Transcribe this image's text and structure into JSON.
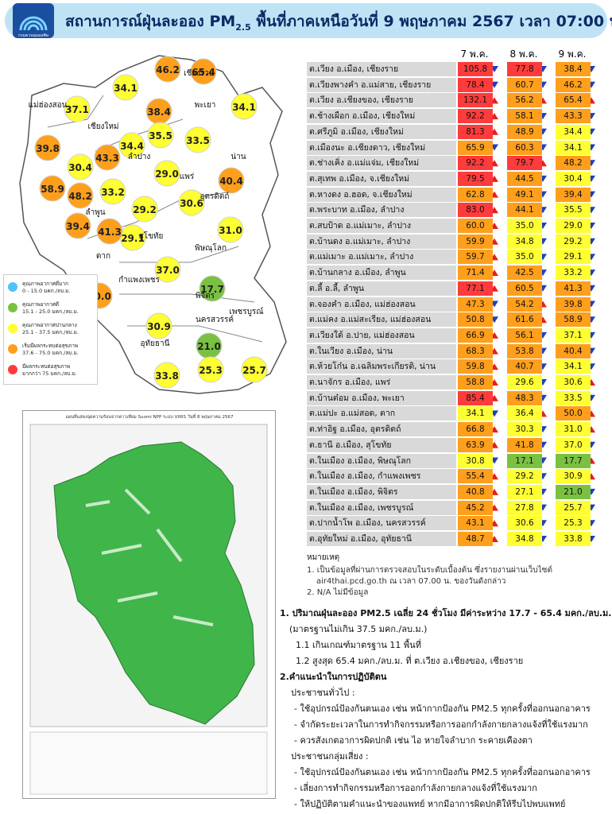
{
  "header": {
    "title_pre": "สถานการณ์ฝุ่นละออง PM",
    "title_sub": "2.5",
    "title_post": "พื้นที่ภาคเหนือวันที่ 9 พฤษภาคม 2567 เวลา 07:00 น.",
    "logo_text": "กรมควบคุมมลพิษ"
  },
  "legend": [
    {
      "label": "คุณภาพอากาศดีมาก",
      "range": "0 - 15.0 มคก./ลบ.ม.",
      "color": "#4fc3f7",
      "from": 0
    },
    {
      "label": "คุณภาพอากาศดี",
      "range": "15.1 - 25.0 มคก./ลบ.ม.",
      "color": "#7ac142",
      "from": 15.1
    },
    {
      "label": "คุณภาพอากาศปานกลาง",
      "range": "25.1 - 37.5 มคก./ลบ.ม.",
      "color": "#ffff33",
      "from": 25.1
    },
    {
      "label": "เริ่มมีผลกระทบต่อสุขภาพ",
      "range": "37.6 - 75.0 มคก./ลบ.ม.",
      "color": "#ff9f1c",
      "from": 37.6
    },
    {
      "label": "มีผลกระทบต่อสุขภาพ",
      "range": "มากกว่า 75 มคก./ลบ.ม.",
      "color": "#ff3b3b",
      "from": 75
    }
  ],
  "map": {
    "provinces": [
      "เชียงราย",
      "แม่ฮ่องสอน",
      "เชียงใหม่",
      "พะเยา",
      "น่าน",
      "ลำปาง",
      "แพร่",
      "ลำพูน",
      "อุตรดิตถ์",
      "สุโขทัย",
      "ตาก",
      "พิษณุโลก",
      "กำแพงเพชร",
      "พิจิตร",
      "เพชรบูรณ์",
      "นครสวรรค์",
      "อุทัยธานี"
    ]
  },
  "hotspot_map": {
    "title": "แผนที่แสดงจุดความร้อนจากดาวเทียม Suomi NPP ระบบ VIIRS วันที่ 8 พฤษภาคม 2567"
  },
  "table": {
    "days": [
      "7 พ.ค.",
      "8 พ.ค.",
      "9 พ.ค."
    ],
    "up_color": "#e02020",
    "down_color": "#1f3fbf",
    "rows": [
      {
        "name": "ต.เวียง อ.เมือง, เชียงราย",
        "values": [
          105.8,
          77.8,
          38.4
        ],
        "trend": [
          "down",
          "down",
          "down"
        ]
      },
      {
        "name": "ต.เวียงพางคำ อ.แม่สาย, เชียงราย",
        "values": [
          78.4,
          60.7,
          46.2
        ],
        "trend": [
          "down",
          "down",
          "down"
        ]
      },
      {
        "name": "ต.เวียง อ.เชียงของ, เชียงราย",
        "values": [
          132.1,
          56.2,
          65.4
        ],
        "trend": [
          "up",
          "up",
          "up"
        ]
      },
      {
        "name": "ต.ช้างเผือก อ.เมือง, เชียงใหม่",
        "values": [
          92.2,
          58.1,
          43.3
        ],
        "trend": [
          "up",
          "down",
          "down"
        ]
      },
      {
        "name": "ต.ศรีภูมิ อ.เมือง, เชียงใหม่",
        "values": [
          81.3,
          48.9,
          34.4
        ],
        "trend": [
          "up",
          "down",
          "down"
        ]
      },
      {
        "name": "ต.เมืองนะ อ.เชียงดาว, เชียงใหม่",
        "values": [
          65.9,
          60.3,
          34.1
        ],
        "trend": [
          "down",
          "down",
          "down"
        ]
      },
      {
        "name": "ต.ช่างเคิ่ง อ.แม่แจ่ม, เชียงใหม่",
        "values": [
          92.2,
          79.7,
          48.2
        ],
        "trend": [
          "up",
          "up",
          "down"
        ]
      },
      {
        "name": "ต.สุเทพ อ.เมือง, จ.เชียงใหม่",
        "values": [
          79.5,
          44.5,
          30.4
        ],
        "trend": [
          "up",
          "down",
          "down"
        ]
      },
      {
        "name": "ต.หางดง อ.ฮอด, จ.เชียงใหม่",
        "values": [
          62.8,
          49.1,
          39.4
        ],
        "trend": [
          "up",
          "down",
          "down"
        ]
      },
      {
        "name": "ต.พระบาท อ.เมือง, ลำปาง",
        "values": [
          83.0,
          44.1,
          35.5
        ],
        "value_labels": [
          "83.0",
          "44.1",
          "35.5"
        ],
        "trend": [
          "up",
          "down",
          "down"
        ]
      },
      {
        "name": "ต.สบป้าด อ.แม่เมาะ, ลำปาง",
        "values": [
          60.0,
          35.0,
          29.0
        ],
        "value_labels": [
          "60.0",
          "35.0",
          "29.0"
        ],
        "trend": [
          "up",
          "down",
          "down"
        ]
      },
      {
        "name": "ต.บ้านดง อ.แม่เมาะ, ลำปาง",
        "values": [
          59.9,
          34.8,
          29.2
        ],
        "trend": [
          "up",
          "down",
          "down"
        ]
      },
      {
        "name": "ต.แม่เมาะ อ.แม่เมาะ, ลำปาง",
        "values": [
          59.7,
          35.0,
          29.1
        ],
        "value_labels": [
          "59.7",
          "35.0",
          "29.1"
        ],
        "trend": [
          "up",
          "down",
          "down"
        ]
      },
      {
        "name": "ต.บ้านกลาง อ.เมือง, ลำพูน",
        "values": [
          71.4,
          42.5,
          33.2
        ],
        "trend": [
          "up",
          "down",
          "down"
        ]
      },
      {
        "name": "ต.ลี้ อ.ลี้, ลำพูน",
        "values": [
          77.1,
          60.5,
          41.3
        ],
        "trend": [
          "up",
          "down",
          "down"
        ]
      },
      {
        "name": "ต.จองคำ อ.เมือง, แม่ฮ่องสอน",
        "values": [
          47.3,
          54.2,
          39.8
        ],
        "trend": [
          "down",
          "up",
          "down"
        ]
      },
      {
        "name": "ต.แม่คง อ.แม่สะเรียง, แม่ฮ่องสอน",
        "values": [
          50.8,
          61.6,
          58.9
        ],
        "trend": [
          "down",
          "up",
          "down"
        ]
      },
      {
        "name": "ต.เวียงใต้ อ.ปาย, แม่ฮ่องสอน",
        "values": [
          66.9,
          56.1,
          37.1
        ],
        "trend": [
          "up",
          "down",
          "down"
        ]
      },
      {
        "name": "ต.ในเวียง อ.เมือง, น่าน",
        "values": [
          68.3,
          53.8,
          40.4
        ],
        "trend": [
          "up",
          "down",
          "down"
        ]
      },
      {
        "name": "ต.ห้วยโก๋น อ.เฉลิมพระเกียรติ, น่าน",
        "values": [
          59.8,
          40.7,
          34.1
        ],
        "trend": [
          "up",
          "down",
          "down"
        ]
      },
      {
        "name": "ต.นาจักร อ.เมือง, แพร่",
        "values": [
          58.8,
          29.6,
          30.6
        ],
        "trend": [
          "up",
          "down",
          "up"
        ]
      },
      {
        "name": "ต.บ้านต๋อม อ.เมือง, พะเยา",
        "values": [
          85.4,
          48.3,
          33.5
        ],
        "trend": [
          "up",
          "down",
          "down"
        ]
      },
      {
        "name": "ต.แม่ปะ อ.แม่สอด, ตาก",
        "values": [
          34.1,
          36.4,
          50.0
        ],
        "value_labels": [
          "34.1",
          "36.4",
          "50.0"
        ],
        "trend": [
          "down",
          "up",
          "up"
        ]
      },
      {
        "name": "ต.ท่าอิฐ อ.เมือง, อุตรดิตถ์",
        "values": [
          66.8,
          30.3,
          31.0
        ],
        "value_labels": [
          "66.8",
          "30.3",
          "31.0"
        ],
        "trend": [
          "up",
          "down",
          "up"
        ]
      },
      {
        "name": "ต.ธานี อ.เมือง, สุโขทัย",
        "values": [
          63.9,
          41.8,
          37.0
        ],
        "value_labels": [
          "63.9",
          "41.8",
          "37.0"
        ],
        "trend": [
          "up",
          "down",
          "down"
        ]
      },
      {
        "name": "ต.ในเมือง อ.เมือง, พิษณุโลก",
        "values": [
          30.8,
          17.1,
          17.7
        ],
        "trend": [
          "down",
          "down",
          "up"
        ]
      },
      {
        "name": "ต.ในเมือง อ.เมือง, กำแพงเพชร",
        "values": [
          55.4,
          29.2,
          30.9
        ],
        "trend": [
          "up",
          "down",
          "up"
        ]
      },
      {
        "name": "ต.ในเมือง อ.เมือง, พิจิตร",
        "values": [
          40.8,
          27.1,
          21.0
        ],
        "value_labels": [
          "40.8",
          "27.1",
          "21.0"
        ],
        "trend": [
          "up",
          "down",
          "down"
        ]
      },
      {
        "name": "ต.ในเมือง อ.เมือง, เพชรบูรณ์",
        "values": [
          45.2,
          27.8,
          25.7
        ],
        "trend": [
          "up",
          "down",
          "down"
        ]
      },
      {
        "name": "ต.ปากน้ำโพ อ.เมือง, นครสวรรค์",
        "values": [
          43.1,
          30.6,
          25.3
        ],
        "trend": [
          "up",
          "down",
          "down"
        ]
      },
      {
        "name": "ต.อุทัยใหม่ อ.เมือง, อุทัยธานี",
        "values": [
          48.7,
          34.8,
          33.8
        ],
        "trend": [
          "up",
          "down",
          "down"
        ]
      }
    ]
  },
  "notes": {
    "title": "หมายเหตุ",
    "lines": [
      "1. เป็นข้อมูลที่ผ่านการตรวจสอบในระดับเบื้องต้น ซึ่งรายงานผ่านเว็บไซต์",
      "air4thai.pcd.go.th ณ เวลา 07.00 น. ของวันดังกล่าว",
      "2. N/A ไม่มีข้อมูล"
    ]
  },
  "summary": {
    "lines": [
      "1. ปริมาณฝุ่นละออง PM2.5 เฉลี่ย 24 ชั่วโมง มีค่าระหว่าง 17.7 - 65.4 มคก./ลบ.ม.",
      "(มาตรฐานไม่เกิน 37.5 มคก./ลบ.ม.)",
      "1.1 เกินเกณฑ์มาตรฐาน 11 พื้นที่",
      "1.2 สูงสุด 65.4 มคก./ลบ.ม. ที่ ต.เวียง อ.เชียงของ, เชียงราย",
      "2.คำแนะนำในการปฏิบัติตน",
      "ประชาชนทั่วไป :",
      "-  ใช้อุปกรณ์ป้องกันตนเอง เช่น หน้ากากป้องกัน PM2.5 ทุกครั้งที่ออกนอกอาคาร",
      "-  จำกัดระยะเวลาในการทำกิจกรรมหรือการออกกำลังกายกลางแจ้งที่ใช้แรงมาก",
      "-  ควรสังเกตอาการผิดปกติ เช่น ไอ หายใจลำบาก ระคายเคืองตา",
      "ประชาชนกลุ่มเสี่ยง :",
      "-  ใช้อุปกรณ์ป้องกันตนเอง เช่น หน้ากากป้องกัน PM2.5 ทุกครั้งที่ออกนอกอาคาร",
      "-  เลี่ยงการทำกิจกรรมหรือการออกกำลังกายกลางแจ้งที่ใช้แรงมาก",
      "-  ให้ปฏิบัติตามคำแนะนำของแพทย์ หากมีอาการผิดปกติให้รีบไปพบแพทย์"
    ]
  }
}
